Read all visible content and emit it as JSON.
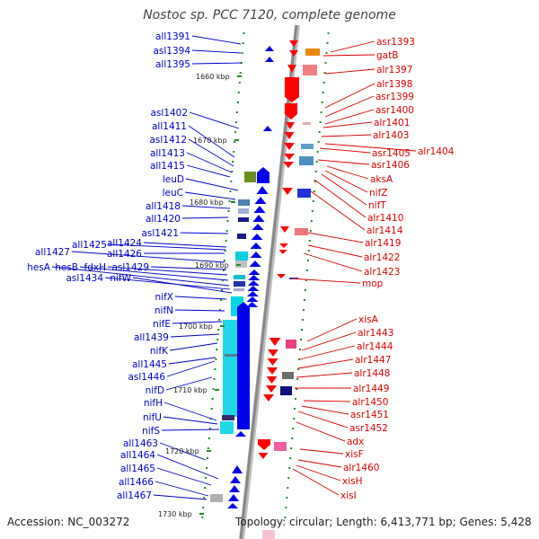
{
  "title": "Nostoc sp. PCC 7120, complete genome",
  "footer": {
    "accession": "Accession: NC_003272",
    "summary": "Topology: circular; Length: 6,413,771 bp; Genes: 5,428"
  },
  "colors": {
    "left_label": "#0000cc",
    "right_label": "#dd0000",
    "forward_gene": "#ff0000",
    "reverse_gene": "#0000ee",
    "backbone": "#888888",
    "kbp_tick": "#228b22"
  },
  "kbp_ticks": [
    {
      "label": "1660 kbp"
    },
    {
      "label": "1670 kbp"
    },
    {
      "label": "1680 kbp"
    },
    {
      "label": "1690 kbp"
    },
    {
      "label": "1700 kbp"
    },
    {
      "label": "1710 kbp"
    },
    {
      "label": "1720 kbp"
    },
    {
      "label": "1730 kbp"
    }
  ],
  "left_genes": [
    {
      "label": "all1391"
    },
    {
      "label": "asl1394"
    },
    {
      "label": "all1395"
    },
    {
      "label": "asl1402"
    },
    {
      "label": "all1411"
    },
    {
      "label": "asl1412"
    },
    {
      "label": "all1413"
    },
    {
      "label": "all1415"
    },
    {
      "label": "leuD"
    },
    {
      "label": "leuC"
    },
    {
      "label": "all1418"
    },
    {
      "label": "all1420"
    },
    {
      "label": "asl1421"
    },
    {
      "label": "all1424"
    },
    {
      "label": "all1425"
    },
    {
      "label": "all1426"
    },
    {
      "label": "all1427"
    },
    {
      "label": "asl1429"
    },
    {
      "label": "fdxH"
    },
    {
      "label": "hesB"
    },
    {
      "label": "hesA"
    },
    {
      "label": "asl1434"
    },
    {
      "label": "nifW"
    },
    {
      "label": "nifX"
    },
    {
      "label": "nifN"
    },
    {
      "label": "nifE"
    },
    {
      "label": "all1439"
    },
    {
      "label": "nifK"
    },
    {
      "label": "all1445"
    },
    {
      "label": "asl1446"
    },
    {
      "label": "nifD"
    },
    {
      "label": "nifH"
    },
    {
      "label": "nifU"
    },
    {
      "label": "nifS"
    },
    {
      "label": "all1463"
    },
    {
      "label": "all1464"
    },
    {
      "label": "all1465"
    },
    {
      "label": "all1466"
    },
    {
      "label": "all1467"
    }
  ],
  "right_genes": [
    {
      "label": "asr1393"
    },
    {
      "label": "gatB"
    },
    {
      "label": "alr1397"
    },
    {
      "label": "alr1398"
    },
    {
      "label": "asr1399"
    },
    {
      "label": "asr1400"
    },
    {
      "label": "alr1401"
    },
    {
      "label": "alr1403"
    },
    {
      "label": "alr1404"
    },
    {
      "label": "asr1405"
    },
    {
      "label": "asr1406"
    },
    {
      "label": "aksA"
    },
    {
      "label": "nifZ"
    },
    {
      "label": "nifT"
    },
    {
      "label": "alr1410"
    },
    {
      "label": "alr1414"
    },
    {
      "label": "alr1419"
    },
    {
      "label": "alr1422"
    },
    {
      "label": "alr1423"
    },
    {
      "label": "mop"
    },
    {
      "label": "xisA"
    },
    {
      "label": "alr1443"
    },
    {
      "label": "alr1444"
    },
    {
      "label": "alr1447"
    },
    {
      "label": "alr1448"
    },
    {
      "label": "alr1449"
    },
    {
      "label": "alr1450"
    },
    {
      "label": "asr1451"
    },
    {
      "label": "asr1452"
    },
    {
      "label": "adx"
    },
    {
      "label": "xisF"
    },
    {
      "label": "alr1460"
    },
    {
      "label": "xisH"
    },
    {
      "label": "xisI"
    }
  ]
}
